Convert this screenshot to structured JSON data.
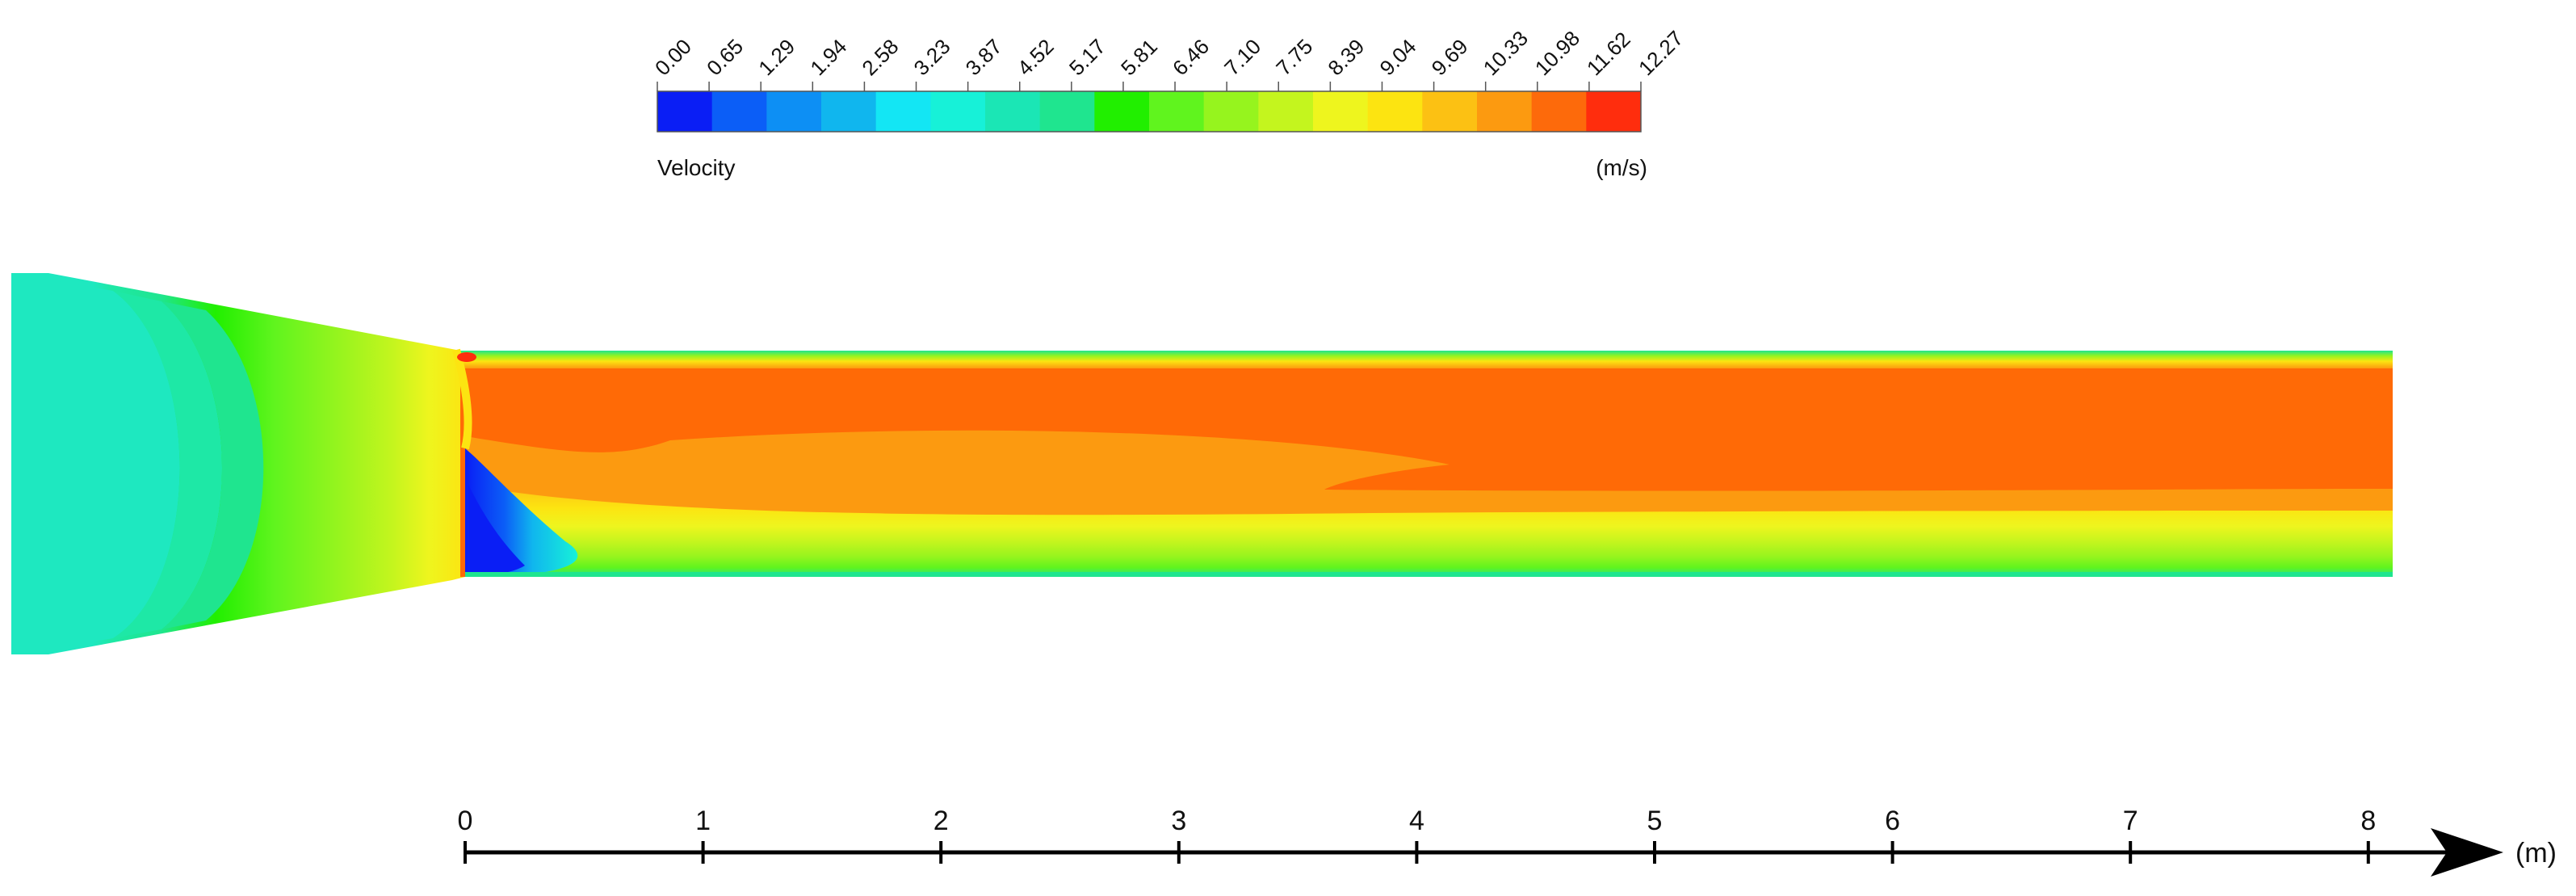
{
  "colorbar": {
    "title": "Velocity",
    "unit": "(m/s)",
    "ticks": [
      "0.00",
      "0.65",
      "1.29",
      "1.94",
      "2.58",
      "3.23",
      "3.87",
      "4.52",
      "5.17",
      "5.81",
      "6.46",
      "7.10",
      "7.75",
      "8.39",
      "9.04",
      "9.69",
      "10.33",
      "10.98",
      "11.62",
      "12.27"
    ],
    "colors": [
      "#0a1ef5",
      "#0b5ef7",
      "#0d8ff4",
      "#10b6ee",
      "#13e6f4",
      "#17f1d8",
      "#1be6b5",
      "#1fe58f",
      "#21ef00",
      "#60f41e",
      "#96f41e",
      "#c4f51e",
      "#eef51e",
      "#fce411",
      "#fcc113",
      "#fc9a10",
      "#fd6a0b",
      "#ff2d0d"
    ]
  },
  "axis": {
    "unit": "(m)",
    "ticks": [
      "0",
      "1",
      "2",
      "3",
      "4",
      "5",
      "6",
      "7",
      "8"
    ]
  },
  "colors": {
    "inlet": "#1ee8c0",
    "core": "#ff6a06",
    "wake": "#fc9a10",
    "recirculation": "#0a1ef5",
    "axis": "#000000"
  }
}
